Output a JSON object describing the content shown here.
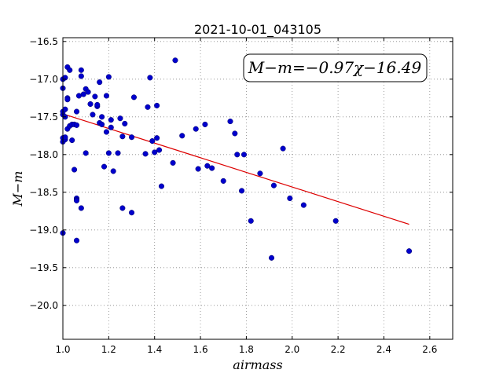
{
  "chart_data": {
    "type": "scatter",
    "title": "2021-10-01_043105",
    "xlabel": "airmass",
    "ylabel": "M−m",
    "xlim": [
      1.0,
      2.7
    ],
    "ylim": [
      -20.45,
      -16.45
    ],
    "y_inverted": true,
    "grid": true,
    "xticks": [
      1.0,
      1.2,
      1.4,
      1.6,
      1.8,
      2.0,
      2.2,
      2.4,
      2.6
    ],
    "xtick_labels": [
      "1.0",
      "1.2",
      "1.4",
      "1.6",
      "1.8",
      "2.0",
      "2.2",
      "2.4",
      "2.6"
    ],
    "yticks": [
      -16.5,
      -17.0,
      -17.5,
      -18.0,
      -18.5,
      -19.0,
      -19.5,
      -20.0
    ],
    "ytick_labels": [
      "−16.5",
      "−17.0",
      "−17.5",
      "−18.0",
      "−18.5",
      "−19.0",
      "−19.5",
      "−20.0"
    ],
    "annotation": "M−m=−0.97χ−16.49",
    "colors": {
      "points": "#0000cc",
      "fit": "#dd0000",
      "grid": "#888888"
    },
    "fit": {
      "slope": -0.97,
      "intercept": -16.49,
      "x_range": [
        1.01,
        2.51
      ]
    },
    "x": [
      1.0,
      1.0,
      1.0,
      1.0,
      1.0,
      1.0,
      1.0,
      1.01,
      1.01,
      1.01,
      1.01,
      1.01,
      1.02,
      1.02,
      1.02,
      1.02,
      1.03,
      1.03,
      1.04,
      1.04,
      1.05,
      1.05,
      1.06,
      1.06,
      1.06,
      1.06,
      1.06,
      1.06,
      1.07,
      1.08,
      1.08,
      1.08,
      1.09,
      1.1,
      1.1,
      1.11,
      1.12,
      1.13,
      1.14,
      1.15,
      1.15,
      1.16,
      1.16,
      1.17,
      1.17,
      1.18,
      1.19,
      1.19,
      1.2,
      1.2,
      1.21,
      1.21,
      1.22,
      1.24,
      1.25,
      1.26,
      1.26,
      1.27,
      1.3,
      1.3,
      1.31,
      1.36,
      1.37,
      1.38,
      1.39,
      1.4,
      1.41,
      1.41,
      1.42,
      1.43,
      1.48,
      1.49,
      1.52,
      1.58,
      1.59,
      1.62,
      1.63,
      1.65,
      1.7,
      1.73,
      1.75,
      1.76,
      1.78,
      1.79,
      1.82,
      1.86,
      1.91,
      1.92,
      1.96,
      1.99,
      2.05,
      2.19,
      2.51
    ],
    "y": [
      -17.47,
      -17.78,
      -17.83,
      -17.43,
      -17.12,
      -19.04,
      -17.0,
      -17.4,
      -17.5,
      -17.8,
      -17.77,
      -16.98,
      -16.84,
      -17.25,
      -17.27,
      -17.66,
      -16.88,
      -17.62,
      -17.81,
      -17.6,
      -18.2,
      -17.6,
      -17.43,
      -17.61,
      -18.58,
      -18.6,
      -18.61,
      -19.14,
      -17.22,
      -16.88,
      -16.96,
      -18.71,
      -17.2,
      -17.13,
      -17.98,
      -17.17,
      -17.33,
      -17.47,
      -17.23,
      -17.36,
      -17.34,
      -17.58,
      -17.04,
      -17.5,
      -17.6,
      -18.16,
      -17.22,
      -17.7,
      -16.97,
      -17.98,
      -17.54,
      -17.64,
      -18.22,
      -17.98,
      -17.52,
      -17.76,
      -18.71,
      -17.59,
      -17.77,
      -18.77,
      -17.24,
      -17.99,
      -17.37,
      -16.98,
      -17.82,
      -17.97,
      -17.35,
      -17.78,
      -17.94,
      -18.42,
      -18.11,
      -16.75,
      -17.75,
      -17.66,
      -18.19,
      -17.6,
      -18.15,
      -18.18,
      -18.35,
      -17.56,
      -17.72,
      -18.0,
      -18.48,
      -18.0,
      -18.88,
      -18.25,
      -19.37,
      -18.41,
      -17.92,
      -18.58,
      -18.67,
      -18.88,
      -19.28
    ]
  }
}
